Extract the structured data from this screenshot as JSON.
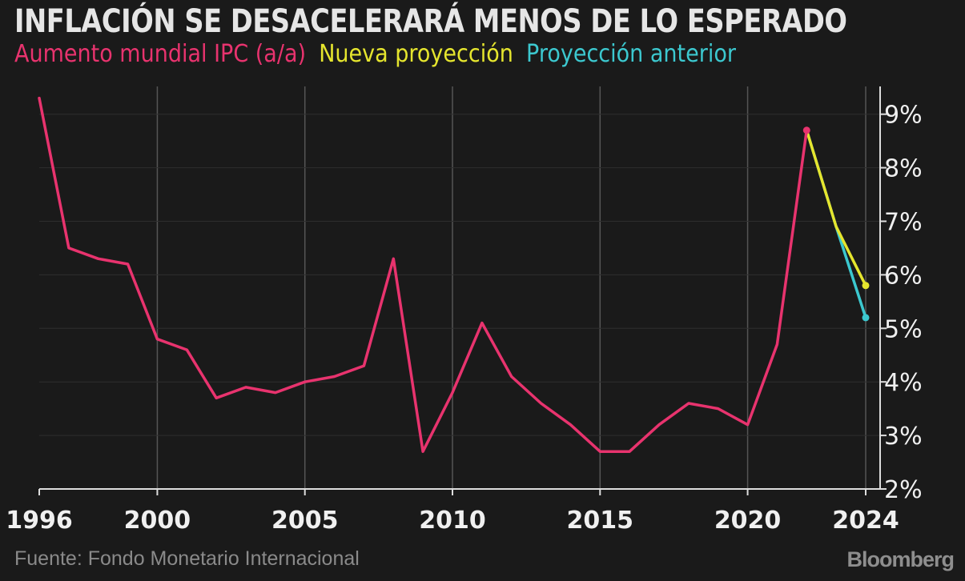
{
  "chart_data": {
    "type": "line",
    "title": "INFLACIÓN SE DESACELERARÁ MENOS DE LO ESPERADO",
    "xlabel": "",
    "ylabel": "",
    "xlim": [
      1996,
      2024
    ],
    "ylim": [
      2,
      9.5
    ],
    "x_ticks": [
      "1996",
      "2000",
      "2005",
      "2010",
      "2015",
      "2020",
      "2024"
    ],
    "y_ticks": [
      "2%",
      "3%",
      "4%",
      "5%",
      "6%",
      "7%",
      "8%",
      "9%"
    ],
    "grid": "vertical",
    "y_axis_side": "right",
    "series": [
      {
        "name": "Aumento mundial IPC (a/a)",
        "color": "#e8336e",
        "x": [
          1996,
          1997,
          1998,
          1999,
          2000,
          2001,
          2002,
          2003,
          2004,
          2005,
          2006,
          2007,
          2008,
          2009,
          2010,
          2011,
          2012,
          2013,
          2014,
          2015,
          2016,
          2017,
          2018,
          2019,
          2020,
          2021,
          2022
        ],
        "values": [
          9.3,
          6.5,
          6.3,
          6.2,
          4.8,
          4.6,
          3.7,
          3.9,
          3.8,
          4.0,
          4.1,
          4.3,
          6.3,
          2.7,
          3.8,
          5.1,
          4.1,
          3.6,
          3.2,
          2.7,
          2.7,
          3.2,
          3.6,
          3.5,
          3.2,
          4.7,
          8.7
        ]
      },
      {
        "name": "Nueva proyección",
        "color": "#e5e52e",
        "x": [
          2022,
          2023,
          2024
        ],
        "values": [
          8.7,
          6.9,
          5.8
        ]
      },
      {
        "name": "Proyección anterior",
        "color": "#3cc8cf",
        "x": [
          2022,
          2023,
          2024
        ],
        "values": [
          8.7,
          6.9,
          5.2
        ]
      }
    ],
    "endpoint_markers": true
  },
  "footer": {
    "source": "Fuente: Fondo Monetario Internacional",
    "brand": "Bloomberg"
  }
}
